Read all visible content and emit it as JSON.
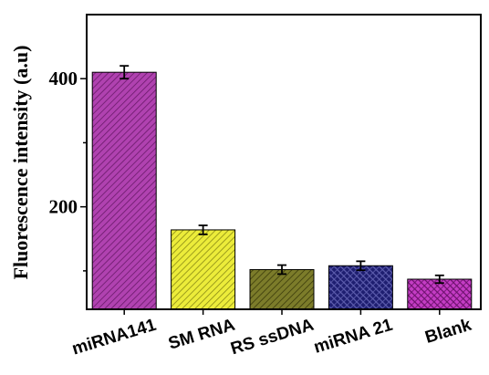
{
  "chart_data": {
    "type": "bar",
    "categories": [
      "miRNA141",
      "SM RNA",
      "RS ssDNA",
      "miRNA 21",
      "Blank"
    ],
    "values": [
      410,
      164,
      102,
      108,
      87
    ],
    "errors": [
      10,
      7,
      7,
      7,
      6
    ],
    "colors": [
      "#b042b0",
      "#ecec3a",
      "#7c7c2a",
      "#1e1e70",
      "#c43cc4"
    ],
    "pattern_colors": [
      "#6a1a6a",
      "#8a8a14",
      "#3a3a0a",
      "#6060b0",
      "#6a106a"
    ],
    "ylabel": "Fluorescence intensity (a.u)",
    "ylim": [
      40,
      500
    ],
    "yticks": [
      200,
      400
    ],
    "grid": false
  }
}
